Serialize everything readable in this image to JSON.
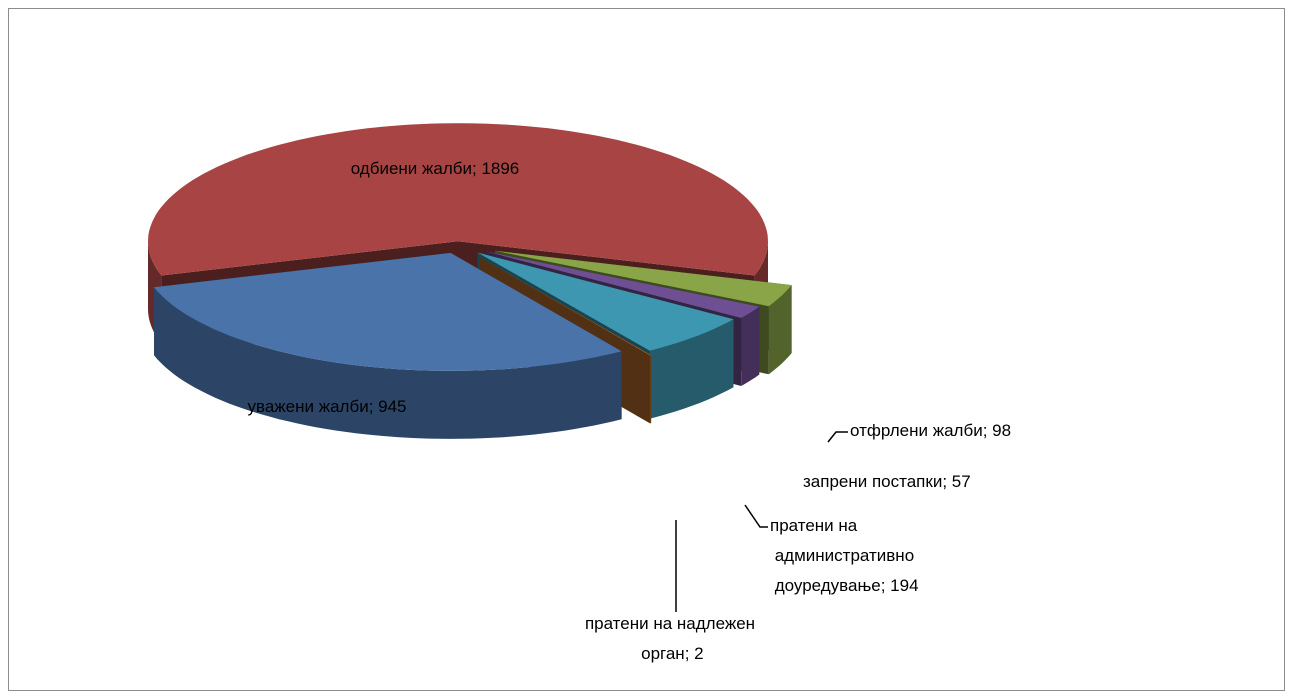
{
  "chart_data": {
    "type": "pie",
    "three_d": true,
    "exploded": true,
    "categories": [
      "уважени жалби",
      "одбиени жалби",
      "отфрлени жалби",
      "запрени постапки",
      "пратени на административно доуредување",
      "пратени на надлежен орган"
    ],
    "values": [
      945,
      1896,
      98,
      57,
      194,
      2
    ],
    "value_labels": [
      "уважени жалби; 945",
      "одбиени жалби; 1896",
      "отфрлени жалби; 98",
      "запрени постапки; 57",
      "пратени на административно доуредување; 194",
      "пратени на надлежен орган; 2"
    ],
    "colors": [
      "#4a73aa",
      "#a84544",
      "#89a547",
      "#6f4f94",
      "#3d97b0",
      "#b36a2a"
    ]
  }
}
